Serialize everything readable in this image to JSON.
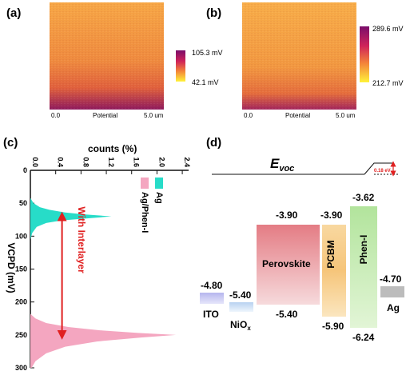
{
  "panels": {
    "a": {
      "label": "(a)",
      "scale_max": "105.3 mV",
      "scale_min": "42.1 mV",
      "axis_left": "0.0",
      "axis_mid": "Potential",
      "axis_right": "5.0 um",
      "colors": {
        "top": "#f7a745",
        "mid": "#e7673b",
        "bottom": "#9e1f5c"
      }
    },
    "b": {
      "label": "(b)",
      "scale_max": "289.6 mV",
      "scale_min": "212.7 mV",
      "axis_left": "0.0",
      "axis_mid": "Potential",
      "axis_right": "5.0 um",
      "colors": {
        "top": "#f8ad48",
        "mid": "#ec7a3c",
        "bottom": "#b42f58"
      }
    },
    "c": {
      "label": "(c)",
      "top_axis_label": "counts (%)",
      "left_axis_label": "VCPD (mV)",
      "arrow_text": "With Interlayer",
      "legend": [
        {
          "name": "Ag",
          "color": "#27dcc8"
        },
        {
          "name": "Ag/Phen-I",
          "color": "#f4a6c0"
        }
      ]
    },
    "d": {
      "label": "(d)",
      "evoc": "E",
      "evoc_sub": "voc",
      "voltage": "0.18 eV",
      "layers": [
        {
          "name": "ITO",
          "top": "-4.80",
          "bottom": "",
          "color": "#c6c6f0"
        },
        {
          "name": "NiOx",
          "name_main": "NiO",
          "name_sub": "x",
          "top": "-5.40",
          "bottom": "",
          "color": "#c8dcf2"
        },
        {
          "name": "Perovskite",
          "top": "-3.90",
          "bottom": "-5.40",
          "color": "#e6868c"
        },
        {
          "name": "PCBM",
          "top": "-3.90",
          "bottom": "-5.90",
          "color": "#f7cc86"
        },
        {
          "name": "Phen-I",
          "top": "-3.62",
          "bottom": "-6.24",
          "color": "#b6e6a2"
        },
        {
          "name": "Ag",
          "top": "-4.70",
          "bottom": "",
          "color": "#bcbcbc"
        }
      ]
    }
  },
  "chart_data": [
    {
      "type": "area",
      "title": "",
      "xlabel": "counts (%)",
      "ylabel": "VCPD (mV)",
      "orientation": "horizontal",
      "x_ticks": [
        "0.0",
        "0.4",
        "0.8",
        "1.2",
        "1.6",
        "2.0",
        "2.4"
      ],
      "y_ticks": [
        "0",
        "50",
        "100",
        "150",
        "200",
        "250",
        "300"
      ],
      "xlim": [
        0,
        2.5
      ],
      "ylim": [
        0,
        300
      ],
      "series": [
        {
          "name": "Ag",
          "color": "#27dcc8",
          "y": [
            42,
            50,
            56,
            60,
            64,
            67,
            70,
            73,
            76,
            80,
            86,
            95,
            105
          ],
          "x": [
            0.0,
            0.05,
            0.15,
            0.3,
            0.55,
            0.85,
            1.28,
            0.9,
            0.5,
            0.25,
            0.1,
            0.03,
            0.0
          ]
        },
        {
          "name": "Ag/Phen-I",
          "color": "#f4a6c0",
          "y": [
            218,
            225,
            232,
            238,
            243,
            247,
            250,
            254,
            260,
            268,
            278,
            290,
            300
          ],
          "x": [
            0.0,
            0.08,
            0.25,
            0.6,
            1.1,
            1.7,
            2.3,
            1.75,
            1.05,
            0.55,
            0.25,
            0.08,
            0.02
          ]
        }
      ],
      "arrow": {
        "from_y": 70,
        "to_y": 250,
        "x": 0.5
      }
    },
    {
      "type": "diagram",
      "title": "",
      "ylabel": "",
      "energy_levels_eV": [
        {
          "layer": "ITO",
          "top": -4.8
        },
        {
          "layer": "NiOx",
          "top": -5.4
        },
        {
          "layer": "Perovskite",
          "top": -3.9,
          "bottom": -5.4
        },
        {
          "layer": "PCBM",
          "top": -3.9,
          "bottom": -5.9
        },
        {
          "layer": "Phen-I",
          "top": -3.62,
          "bottom": -6.24
        },
        {
          "layer": "Ag",
          "top": -4.7
        }
      ]
    }
  ]
}
